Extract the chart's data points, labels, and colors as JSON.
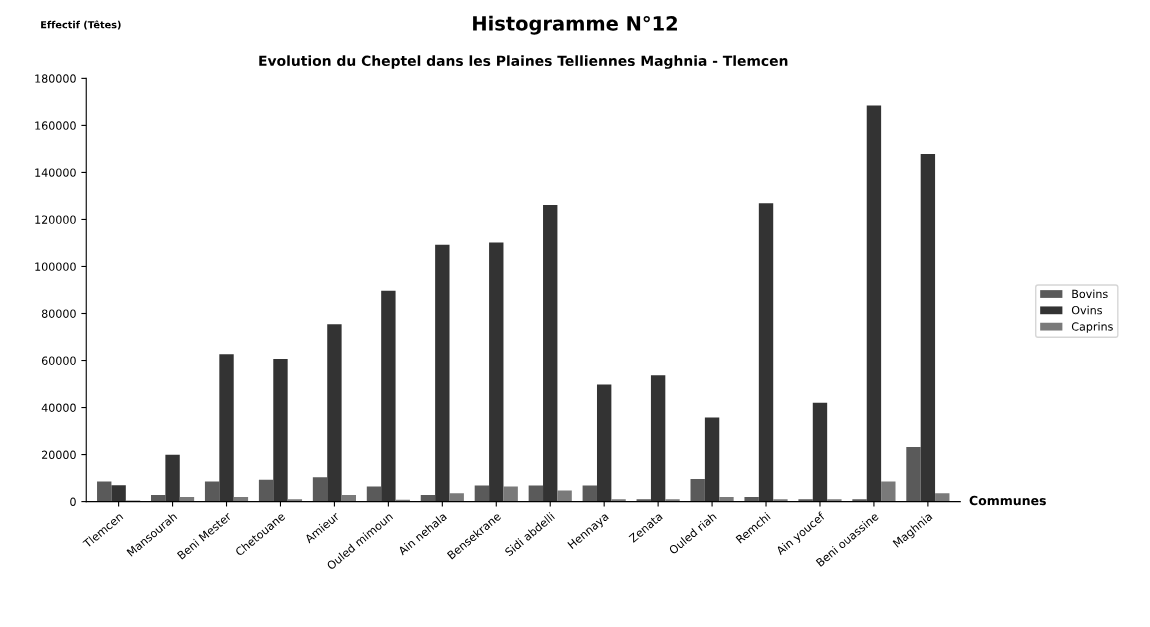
{
  "chart_data": {
    "type": "bar",
    "title": "Histogramme N°12",
    "subtitle": "Evolution du Cheptel dans les Plaines Telliennes Maghnia - Tlemcen",
    "ylabel": "Effectif (Têtes)",
    "xlabel": "Communes",
    "categories": [
      "Tlemcen",
      "Mansourah",
      "Beni Mester",
      "Chetouane",
      "Amieur",
      "Ouled mimoun",
      "Ain nehala",
      "Bensekrane",
      "Sidi abdelli",
      "Hennaya",
      "Zenata",
      "Ouled riah",
      "Remchi",
      "Ain youcef",
      "Beni ouassine",
      "Maghnia"
    ],
    "series": [
      {
        "name": "Bovins",
        "color": "#5a5a5a",
        "values": [
          8500,
          2800,
          8500,
          9300,
          10400,
          6400,
          2800,
          6900,
          6900,
          6900,
          1000,
          9600,
          2000,
          1000,
          1000,
          23200
        ]
      },
      {
        "name": "Ovins",
        "color": "#333333",
        "values": [
          7000,
          19900,
          62700,
          60700,
          75400,
          89700,
          109200,
          110200,
          126100,
          49800,
          53700,
          35800,
          126900,
          42000,
          168500,
          147800
        ]
      },
      {
        "name": "Caprins",
        "color": "#7a7a7a",
        "values": [
          500,
          2000,
          2000,
          1000,
          2800,
          800,
          3600,
          6400,
          4700,
          1000,
          1000,
          2000,
          1000,
          1000,
          8500,
          3600
        ]
      }
    ],
    "ylim": [
      0,
      180000
    ],
    "yticks": [
      0,
      20000,
      40000,
      60000,
      80000,
      100000,
      120000,
      140000,
      160000,
      180000
    ],
    "grid": false,
    "legend": "right"
  }
}
